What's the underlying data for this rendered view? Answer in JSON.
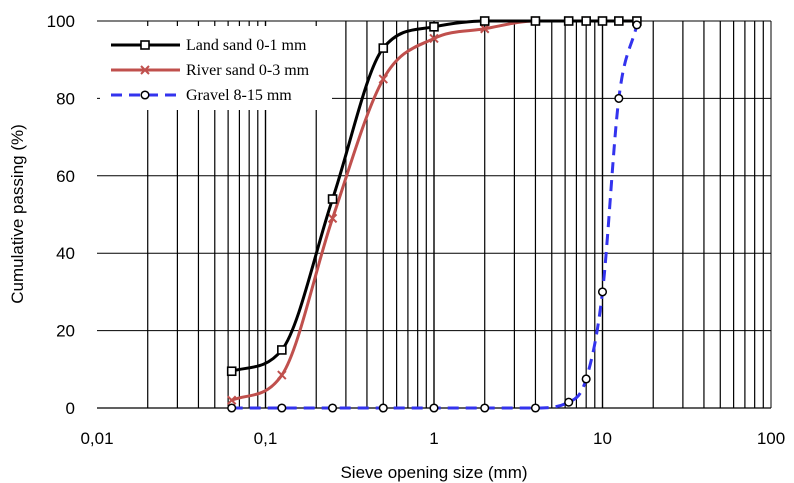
{
  "chart_data": {
    "type": "line",
    "xscale": "log",
    "xlim": [
      0.01,
      100
    ],
    "ylim": [
      0,
      100
    ],
    "xticks": [
      "0,01",
      "0,1",
      "1",
      "10",
      "100"
    ],
    "yticks": [
      "0",
      "20",
      "40",
      "60",
      "80",
      "100"
    ],
    "xlabel": "Sieve opening size (mm)",
    "ylabel": "Cumulative passing (%)",
    "grid": "vertical minor and major gridlines",
    "legend_position": "top-left",
    "series": [
      {
        "name": "Land sand 0-1 mm",
        "color": "#000000",
        "marker": "square",
        "dash": "solid",
        "x": [
          0.063,
          0.125,
          0.25,
          0.5,
          1,
          2,
          4,
          6.3,
          8,
          10,
          12.5,
          16
        ],
        "y": [
          9.5,
          15,
          54,
          93,
          98.5,
          100,
          100,
          100,
          100,
          100,
          100,
          100
        ]
      },
      {
        "name": "River sand 0-3 mm",
        "color": "#c0504d",
        "marker": "x",
        "dash": "solid",
        "x": [
          0.063,
          0.125,
          0.25,
          0.5,
          1,
          2,
          4,
          6.3,
          8,
          10,
          12.5,
          16
        ],
        "y": [
          2,
          8.5,
          49,
          85,
          95.5,
          98,
          100,
          100,
          100,
          100,
          100,
          100
        ]
      },
      {
        "name": "Gravel 8-15 mm",
        "color": "#3333ee",
        "marker": "circle",
        "dash": "dashed",
        "x": [
          0.063,
          0.125,
          0.25,
          0.5,
          1,
          2,
          4,
          6.3,
          8,
          10,
          12.5,
          16
        ],
        "y": [
          0,
          0,
          0,
          0,
          0,
          0,
          0,
          1.5,
          7.5,
          30,
          80,
          99
        ]
      }
    ]
  }
}
